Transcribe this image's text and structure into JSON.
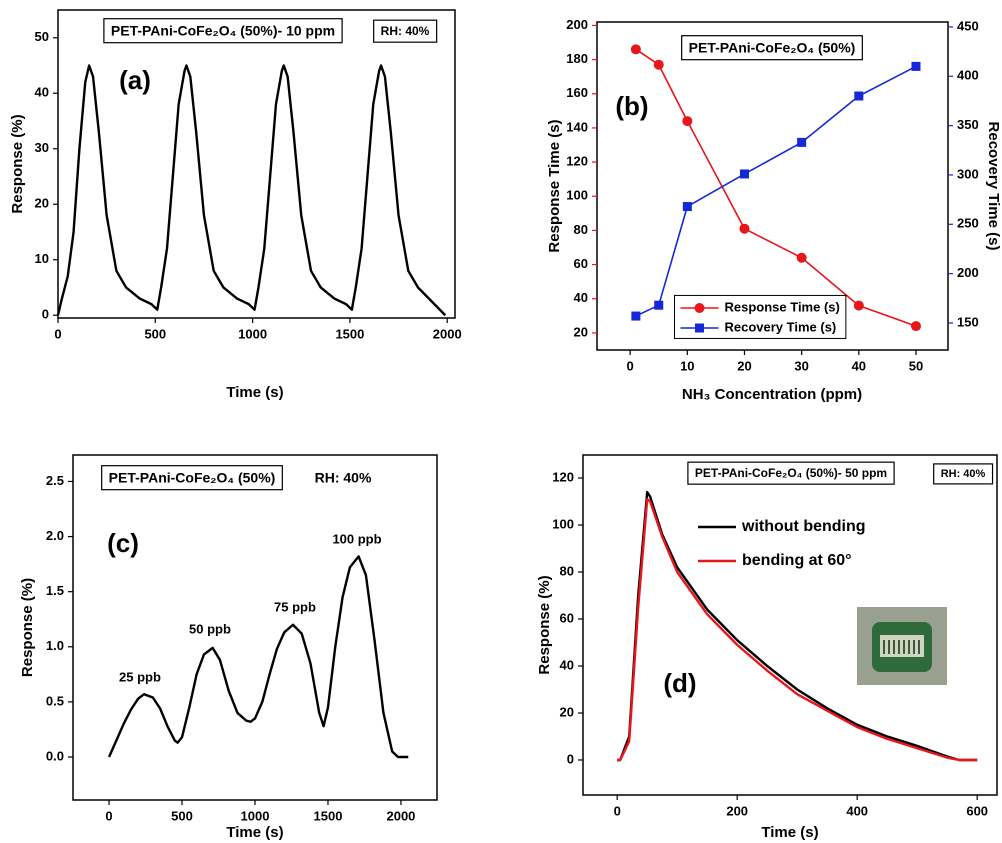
{
  "chart_data": [
    {
      "type": "line",
      "annotations": [
        "PET-PAni-CoFe₂O₄ (50%)- 10 ppm",
        "RH: 40%",
        "(a)"
      ],
      "xlabel": "Time (s)",
      "ylabel": "Response (%)",
      "x": [
        0,
        20,
        50,
        80,
        110,
        140,
        160,
        180,
        210,
        250,
        300,
        350,
        420,
        480,
        510,
        530,
        560,
        590,
        620,
        650,
        660,
        680,
        710,
        750,
        800,
        850,
        920,
        980,
        1010,
        1030,
        1060,
        1090,
        1120,
        1150,
        1160,
        1180,
        1210,
        1250,
        1300,
        1350,
        1420,
        1480,
        1510,
        1530,
        1560,
        1590,
        1620,
        1650,
        1660,
        1680,
        1710,
        1750,
        1800,
        1850,
        1920,
        1990
      ],
      "series": [
        {
          "color": "#000000",
          "values": [
            0,
            3,
            7,
            15,
            30,
            42,
            45,
            43,
            33,
            18,
            8,
            5,
            3,
            2,
            1,
            5,
            12,
            25,
            38,
            44,
            45,
            43,
            33,
            18,
            8,
            5,
            3,
            2,
            1,
            5,
            12,
            25,
            38,
            44,
            45,
            43,
            33,
            18,
            8,
            5,
            3,
            2,
            1,
            5,
            12,
            25,
            38,
            44,
            45,
            43,
            33,
            18,
            8,
            5,
            2.5,
            0
          ]
        }
      ],
      "xlim": [
        0,
        2040
      ],
      "ylim": [
        -0.5,
        55
      ],
      "xticks": [
        0,
        500,
        1000,
        1500,
        2000
      ],
      "yticks": [
        0,
        10,
        20,
        30,
        40,
        50
      ]
    },
    {
      "type": "line",
      "annotations": [
        "PET-PAni-CoFe₂O₄ (50%)",
        "(b)"
      ],
      "xlabel": "NH₃ Concentration (ppm)",
      "ylabel": "Response Time (s)",
      "y2label": "Recovery Time (s)",
      "ylabel_color": "#e8151b",
      "y2label_color": "#1428d8",
      "x": [
        1,
        5,
        10,
        20,
        30,
        40,
        50
      ],
      "series": [
        {
          "name": "Response Time (s)",
          "color": "#e8151b",
          "marker": "circle",
          "values": [
            186,
            177,
            144,
            81,
            64,
            36,
            24
          ]
        },
        {
          "name": "Recovery Time (s)",
          "color": "#1428d8",
          "marker": "square",
          "axis": "y2",
          "values": [
            157,
            168,
            268,
            301,
            333,
            380,
            410
          ]
        }
      ],
      "xlim": [
        -5.8,
        55.6
      ],
      "ylim": [
        10,
        202
      ],
      "y2lim": [
        122.6,
        455
      ],
      "xticks": [
        0,
        10,
        20,
        30,
        40,
        50
      ],
      "yticks": [
        20,
        40,
        60,
        80,
        100,
        120,
        140,
        160,
        180,
        200
      ],
      "y2ticks": [
        150,
        200,
        250,
        300,
        350,
        400,
        450
      ],
      "legend": "lower center"
    },
    {
      "type": "line",
      "annotations": [
        "PET-PAni-CoFe₂O₄ (50%)",
        "RH: 40%",
        "(c)",
        "25 ppb",
        "50 ppb",
        "75 ppb",
        "100 ppb"
      ],
      "xlabel": "Time (s)",
      "ylabel": "Response (%)",
      "x": [
        0,
        50,
        100,
        150,
        200,
        240,
        300,
        350,
        400,
        450,
        470,
        500,
        550,
        600,
        650,
        710,
        760,
        820,
        880,
        940,
        970,
        1000,
        1050,
        1100,
        1150,
        1200,
        1260,
        1320,
        1380,
        1440,
        1470,
        1500,
        1550,
        1600,
        1650,
        1710,
        1760,
        1820,
        1880,
        1940,
        1980,
        2050
      ],
      "series": [
        {
          "color": "#000000",
          "values": [
            0,
            0.15,
            0.3,
            0.43,
            0.53,
            0.57,
            0.54,
            0.44,
            0.28,
            0.15,
            0.13,
            0.18,
            0.45,
            0.75,
            0.93,
            0.99,
            0.88,
            0.6,
            0.4,
            0.33,
            0.32,
            0.35,
            0.5,
            0.75,
            0.98,
            1.13,
            1.2,
            1.12,
            0.85,
            0.4,
            0.28,
            0.45,
            1.0,
            1.45,
            1.72,
            1.82,
            1.65,
            1.05,
            0.4,
            0.05,
            0,
            0
          ]
        }
      ],
      "xlim": [
        -247,
        2247
      ],
      "ylim": [
        -0.39,
        2.74
      ],
      "xticks": [
        0,
        500,
        1000,
        1500,
        2000
      ],
      "yticks": [
        {
          "value": 0,
          "label": "0.0"
        },
        0.5,
        {
          "value": 1,
          "label": "1.0"
        },
        1.5,
        {
          "value": 2,
          "label": "2.0"
        },
        2.5
      ]
    },
    {
      "type": "line",
      "annotations": [
        "PET-PAni-CoFe₂O₄ (50%)- 50 ppm",
        "RH: 40%",
        "(d)"
      ],
      "xlabel": "Time (s)",
      "ylabel": "Response (%)",
      "x": [
        0,
        5,
        20,
        35,
        50,
        55,
        75,
        100,
        150,
        200,
        250,
        300,
        350,
        400,
        450,
        500,
        550,
        570,
        600
      ],
      "series": [
        {
          "name": "without bending",
          "color": "#000000",
          "values": [
            0,
            0,
            10,
            70,
            114,
            112,
            96,
            82,
            64,
            51,
            40,
            30,
            22,
            15,
            10,
            6,
            1.5,
            0,
            0
          ]
        },
        {
          "name": "bending at 60°",
          "color": "#e8151b",
          "values": [
            0,
            0,
            8,
            65,
            111,
            110,
            95,
            80,
            62,
            49,
            38,
            28,
            21,
            14,
            9,
            5,
            1,
            0,
            0
          ]
        }
      ],
      "xlim": [
        -57,
        633
      ],
      "ylim": [
        -14.9,
        129.8
      ],
      "xticks": [
        0,
        200,
        400,
        600
      ],
      "yticks": [
        0,
        20,
        40,
        60,
        80,
        100,
        120
      ],
      "legend": "upper center"
    }
  ]
}
